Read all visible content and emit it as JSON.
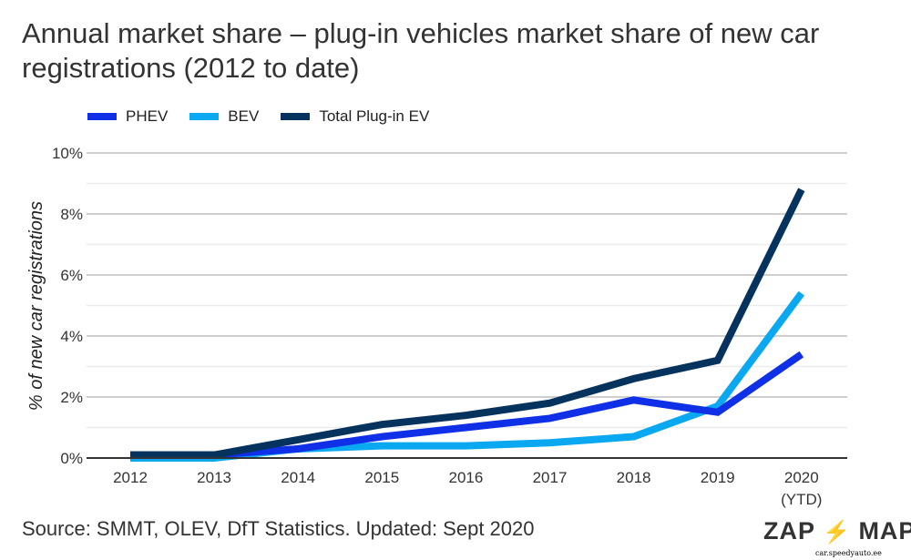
{
  "chart_data": {
    "type": "line",
    "title": "Annual market share – plug-in vehicles market share of new car registrations (2012 to date)",
    "ylabel": "% of new car registrations",
    "xlabel": "",
    "categories": [
      "2012",
      "2013",
      "2014",
      "2015",
      "2016",
      "2017",
      "2018",
      "2019",
      "2020"
    ],
    "category_sublabels": [
      "",
      "",
      "",
      "",
      "",
      "",
      "",
      "",
      "(YTD)"
    ],
    "ylim": [
      0,
      10
    ],
    "yticks": [
      "0%",
      "2%",
      "4%",
      "6%",
      "8%",
      "10%"
    ],
    "grid": true,
    "legend": "top-left",
    "series": [
      {
        "name": "PHEV",
        "color": "#1030e8",
        "values": [
          0.1,
          0.1,
          0.3,
          0.7,
          1.0,
          1.3,
          1.9,
          1.5,
          3.4
        ]
      },
      {
        "name": "BEV",
        "color": "#0aa8f0",
        "values": [
          0.0,
          0.0,
          0.3,
          0.4,
          0.4,
          0.5,
          0.7,
          1.7,
          5.4
        ]
      },
      {
        "name": "Total Plug-in EV",
        "color": "#06325e",
        "values": [
          0.1,
          0.1,
          0.6,
          1.1,
          1.4,
          1.8,
          2.6,
          3.2,
          8.8
        ]
      }
    ]
  },
  "source": "Source: SMMT, OLEV, DfT Statistics. Updated: Sept 2020",
  "logo": {
    "left": "ZAP",
    "right": "MAP",
    "reg": "®"
  },
  "watermark": "car.speedyauto.ee"
}
